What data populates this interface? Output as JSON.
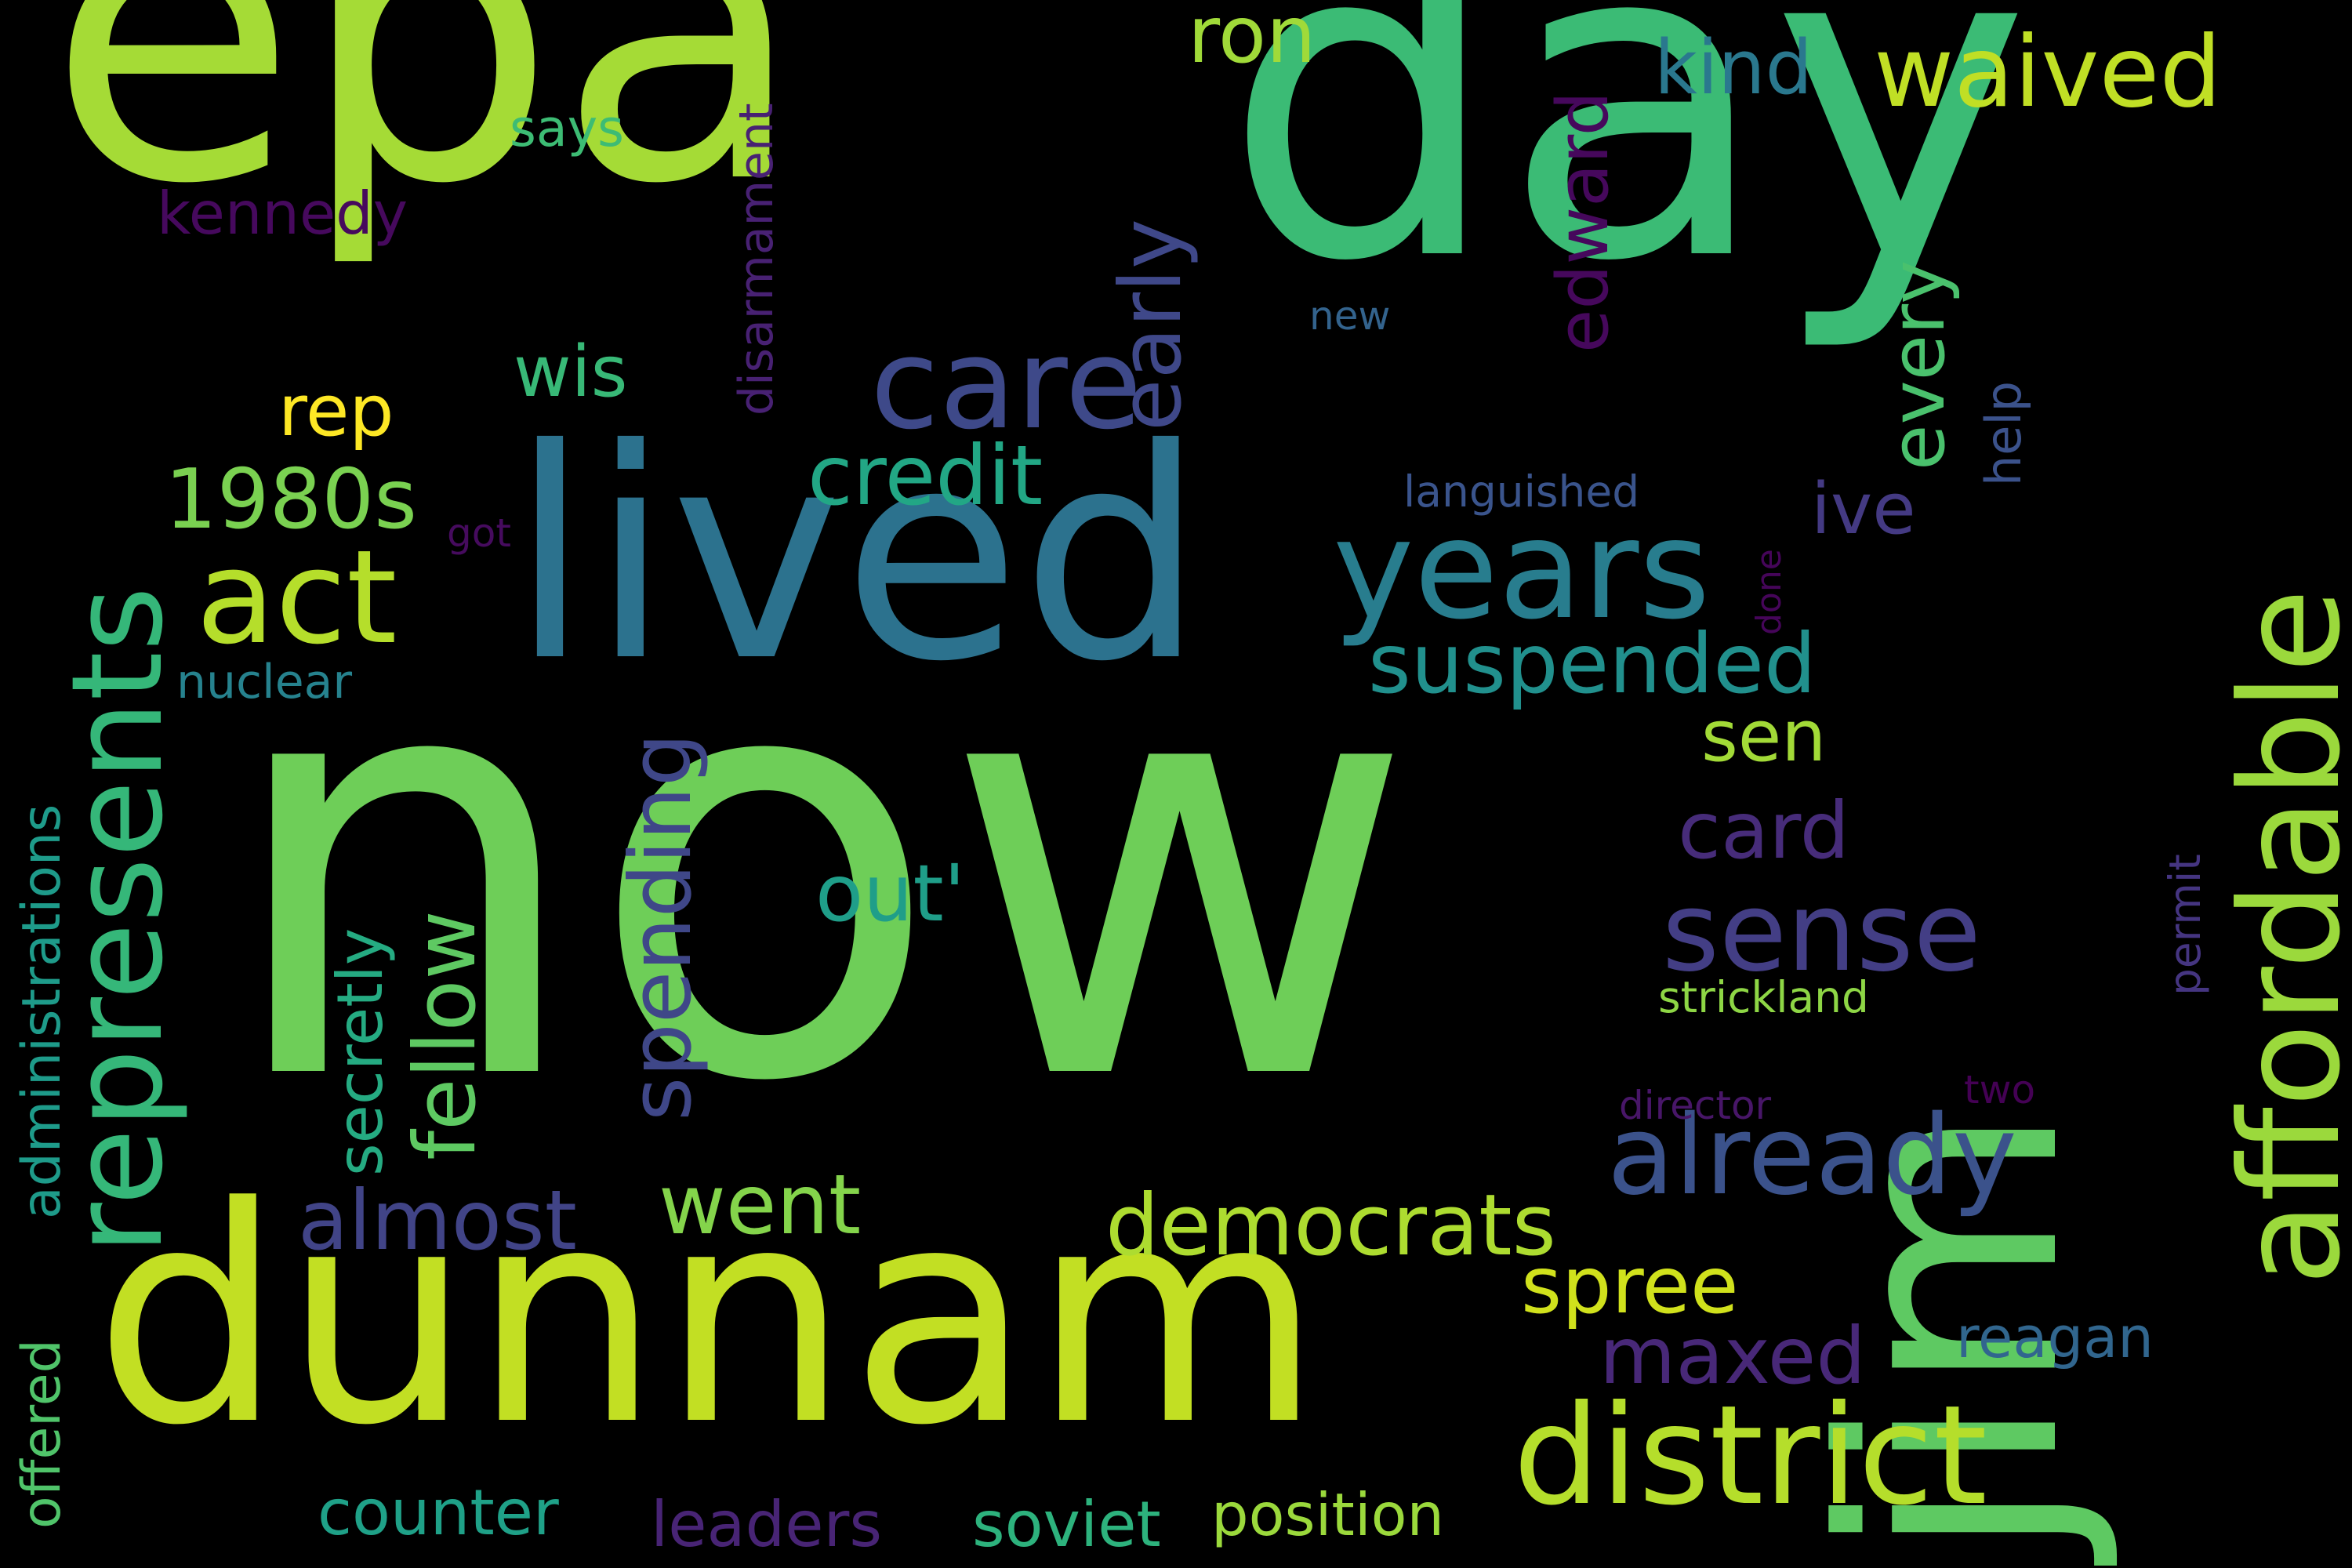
{
  "words": {
    "now": {
      "text": "now",
      "color": "#6ece58"
    },
    "epa": {
      "text": "epa",
      "color": "#a5db36"
    },
    "day": {
      "text": "day",
      "color": "#3bbb75"
    },
    "dunnam": {
      "text": "dunnam",
      "color": "#c2df23"
    },
    "jim": {
      "text": "jim",
      "color": "#5ec962"
    },
    "lived": {
      "text": "lived",
      "color": "#2c728e"
    },
    "affordable": {
      "text": "affordable",
      "color": "#9bd93c"
    },
    "represents": {
      "text": "represents",
      "color": "#35b779"
    },
    "district": {
      "text": "district",
      "color": "#b5de2b"
    },
    "years": {
      "text": "years",
      "color": "#287d8e"
    },
    "care": {
      "text": "care",
      "color": "#3e4989"
    },
    "act": {
      "text": "act",
      "color": "#b5de2b"
    },
    "already": {
      "text": "already",
      "color": "#3b528b"
    },
    "sense": {
      "text": "sense",
      "color": "#433e85"
    },
    "waived": {
      "text": "waived",
      "color": "#c0df25"
    },
    "democrats": {
      "text": "democrats",
      "color": "#addc30"
    },
    "suspended": {
      "text": "suspended",
      "color": "#21908d"
    },
    "credit": {
      "text": "credit",
      "color": "#22a785"
    },
    "spending": {
      "text": "spending",
      "color": "#3f4788"
    },
    "fellow": {
      "text": "fellow",
      "color": "#5ec962"
    },
    "1980s": {
      "text": "1980s",
      "color": "#7ad151"
    },
    "early": {
      "text": "early",
      "color": "#3f4889"
    },
    "almost": {
      "text": "almost",
      "color": "#414487"
    },
    "went": {
      "text": "went",
      "color": "#84d44b"
    },
    "maxed": {
      "text": "maxed",
      "color": "#482878"
    },
    "card": {
      "text": "card",
      "color": "#472c7a"
    },
    "out": {
      "text": "out'",
      "color": "#1f9e89"
    },
    "spree": {
      "text": "spree",
      "color": "#d0e11c"
    },
    "ron": {
      "text": "ron",
      "color": "#a0da39"
    },
    "kind": {
      "text": "kind",
      "color": "#2a788e"
    },
    "edward": {
      "text": "edward",
      "color": "#46085c"
    },
    "every": {
      "text": "every",
      "color": "#4ac16d"
    },
    "ive": {
      "text": "ive",
      "color": "#443a83"
    },
    "sen": {
      "text": "sen",
      "color": "#a2da37"
    },
    "wis": {
      "text": "wis",
      "color": "#38b977"
    },
    "rep": {
      "text": "rep",
      "color": "#fde725"
    },
    "secretly": {
      "text": "secretly",
      "color": "#25ab82"
    },
    "counter": {
      "text": "counter",
      "color": "#1fa188"
    },
    "leaders": {
      "text": "leaders",
      "color": "#482475"
    },
    "soviet": {
      "text": "soviet",
      "color": "#2db27d"
    },
    "position": {
      "text": "position",
      "color": "#9bd93c"
    },
    "reagan": {
      "text": "reagan",
      "color": "#31668e"
    },
    "administrations": {
      "text": "administrations",
      "color": "#1e9b8a"
    },
    "offered": {
      "text": "offered",
      "color": "#50c46a"
    },
    "nuclear": {
      "text": "nuclear",
      "color": "#26828e"
    },
    "disarmament": {
      "text": "disarmament",
      "color": "#482173"
    },
    "kennedy": {
      "text": "kennedy",
      "color": "#46095d"
    },
    "says": {
      "text": "says",
      "color": "#3dbc74"
    },
    "new": {
      "text": "new",
      "color": "#33638d"
    },
    "help": {
      "text": "help",
      "color": "#3b528b"
    },
    "languished": {
      "text": "languished",
      "color": "#3a548c"
    },
    "got": {
      "text": "got",
      "color": "#460b5e"
    },
    "done": {
      "text": "done",
      "color": "#450559"
    },
    "strickland": {
      "text": "strickland",
      "color": "#8ed645"
    },
    "permit": {
      "text": "permit",
      "color": "#453581"
    },
    "director": {
      "text": "director",
      "color": "#481668"
    },
    "two": {
      "text": "two",
      "color": "#440154"
    }
  }
}
